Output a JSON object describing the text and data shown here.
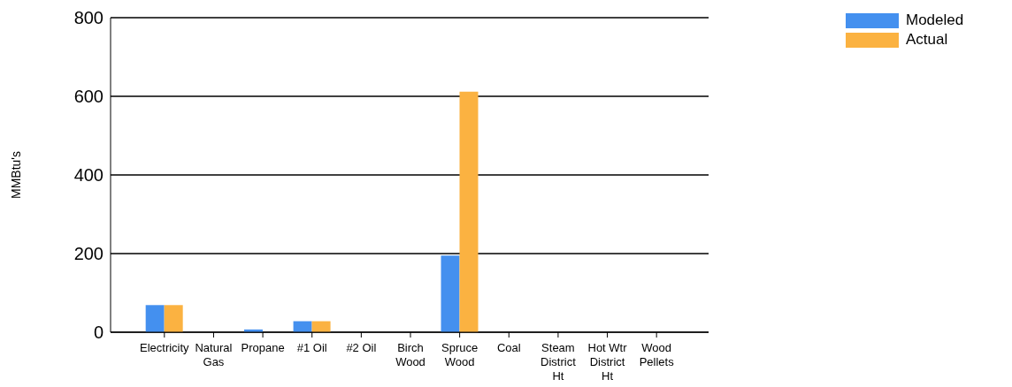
{
  "chart_data": {
    "type": "bar",
    "ylabel": "MMBtu's",
    "categories": [
      "Electricity",
      "Natural Gas",
      "Propane",
      "#1 Oil",
      "#2 Oil",
      "Birch Wood",
      "Spruce Wood",
      "Coal",
      "Steam District Ht",
      "Hot Wtr District Ht",
      "Wood Pellets"
    ],
    "series": [
      {
        "name": "Modeled",
        "color": "#4490ef",
        "values": [
          69,
          0,
          7,
          28,
          0,
          0,
          195,
          0,
          0,
          0,
          0
        ]
      },
      {
        "name": "Actual",
        "color": "#fbb241",
        "values": [
          69,
          0,
          0,
          28,
          0,
          0,
          612,
          0,
          0,
          0,
          0
        ]
      }
    ],
    "ylim": [
      0,
      800
    ],
    "yticks": [
      0,
      200,
      400,
      600,
      800
    ],
    "grid": "y",
    "legend": "top right"
  }
}
